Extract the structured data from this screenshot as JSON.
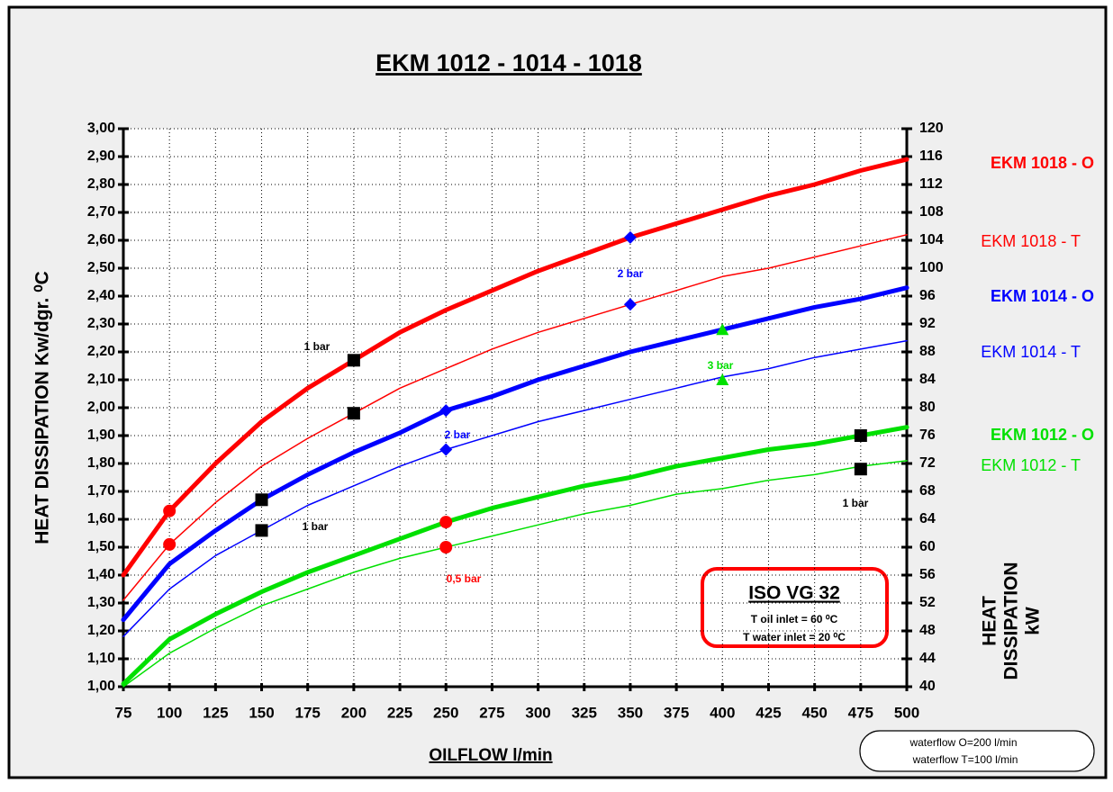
{
  "chart_data": {
    "type": "line",
    "title": "EKM 1012 - 1014 - 1018",
    "xlabel": "OILFLOW l/min",
    "ylabel": "HEAT DISSIPATION  Kw/dgr. ⁰C",
    "y2label": [
      "HEAT",
      "DISSIPATION",
      "kW"
    ],
    "x": [
      75,
      100,
      125,
      150,
      175,
      200,
      225,
      250,
      275,
      300,
      325,
      350,
      375,
      400,
      425,
      450,
      475,
      500
    ],
    "xlim": [
      75,
      500
    ],
    "xticks": [
      75,
      100,
      125,
      150,
      175,
      200,
      225,
      250,
      275,
      300,
      325,
      350,
      375,
      400,
      425,
      450,
      475,
      500
    ],
    "ylim": [
      1.0,
      3.0
    ],
    "yticks": [
      {
        "value": 1.0,
        "label": "1,00"
      },
      {
        "value": 1.1,
        "label": "1,10"
      },
      {
        "value": 1.2,
        "label": "1,20"
      },
      {
        "value": 1.3,
        "label": "1,30"
      },
      {
        "value": 1.4,
        "label": "1,40"
      },
      {
        "value": 1.5,
        "label": "1,50"
      },
      {
        "value": 1.6,
        "label": "1,60"
      },
      {
        "value": 1.7,
        "label": "1,70"
      },
      {
        "value": 1.8,
        "label": "1,80"
      },
      {
        "value": 1.9,
        "label": "1,90"
      },
      {
        "value": 2.0,
        "label": "2,00"
      },
      {
        "value": 2.1,
        "label": "2,10"
      },
      {
        "value": 2.2,
        "label": "2,20"
      },
      {
        "value": 2.3,
        "label": "2,30"
      },
      {
        "value": 2.4,
        "label": "2,40"
      },
      {
        "value": 2.5,
        "label": "2,50"
      },
      {
        "value": 2.6,
        "label": "2,60"
      },
      {
        "value": 2.7,
        "label": "2,70"
      },
      {
        "value": 2.8,
        "label": "2,80"
      },
      {
        "value": 2.9,
        "label": "2,90"
      },
      {
        "value": 3.0,
        "label": "3,00"
      }
    ],
    "y2lim": [
      40,
      120
    ],
    "y2ticks": [
      40,
      44,
      48,
      52,
      56,
      60,
      64,
      68,
      72,
      76,
      80,
      84,
      88,
      92,
      96,
      100,
      104,
      108,
      112,
      116,
      120
    ],
    "grid": true,
    "series": [
      {
        "name": "EKM 1018 - O",
        "color": "#ff0000",
        "line_width": 5,
        "values": [
          1.4,
          1.63,
          1.8,
          1.95,
          2.07,
          2.17,
          2.27,
          2.35,
          2.42,
          2.49,
          2.55,
          2.61,
          2.66,
          2.71,
          2.76,
          2.8,
          2.85,
          2.89
        ]
      },
      {
        "name": "EKM 1018 - T",
        "color": "#ff0000",
        "line_width": 1.5,
        "values": [
          1.31,
          1.51,
          1.66,
          1.79,
          1.89,
          1.98,
          2.07,
          2.14,
          2.21,
          2.27,
          2.32,
          2.37,
          2.42,
          2.47,
          2.5,
          2.54,
          2.58,
          2.62
        ]
      },
      {
        "name": "EKM 1014 - O",
        "color": "#0000ff",
        "line_width": 5,
        "values": [
          1.24,
          1.44,
          1.56,
          1.67,
          1.76,
          1.84,
          1.91,
          1.99,
          2.04,
          2.1,
          2.15,
          2.2,
          2.24,
          2.28,
          2.32,
          2.36,
          2.39,
          2.43
        ]
      },
      {
        "name": "EKM 1014 - T",
        "color": "#0000ff",
        "line_width": 1.5,
        "values": [
          1.18,
          1.35,
          1.47,
          1.56,
          1.65,
          1.72,
          1.79,
          1.85,
          1.9,
          1.95,
          1.99,
          2.03,
          2.07,
          2.11,
          2.14,
          2.18,
          2.21,
          2.24
        ]
      },
      {
        "name": "EKM 1012 - O",
        "color": "#00e000",
        "line_width": 5,
        "values": [
          1.01,
          1.17,
          1.26,
          1.34,
          1.41,
          1.47,
          1.53,
          1.59,
          1.64,
          1.68,
          1.72,
          1.75,
          1.79,
          1.82,
          1.85,
          1.87,
          1.9,
          1.93
        ]
      },
      {
        "name": "EKM 1012 - T",
        "color": "#00e000",
        "line_width": 1.5,
        "values": [
          1.0,
          1.12,
          1.21,
          1.29,
          1.35,
          1.41,
          1.46,
          1.5,
          1.54,
          1.58,
          1.62,
          1.65,
          1.69,
          1.71,
          1.74,
          1.76,
          1.79,
          1.81
        ]
      }
    ],
    "markers": [
      {
        "x": 200,
        "y": 2.17,
        "shape": "square",
        "color": "#000000"
      },
      {
        "x": 200,
        "y": 1.98,
        "shape": "square",
        "color": "#000000"
      },
      {
        "x": 150,
        "y": 1.67,
        "shape": "square",
        "color": "#000000"
      },
      {
        "x": 150,
        "y": 1.56,
        "shape": "square",
        "color": "#000000"
      },
      {
        "x": 475,
        "y": 1.9,
        "shape": "square",
        "color": "#000000"
      },
      {
        "x": 475,
        "y": 1.78,
        "shape": "square",
        "color": "#000000"
      },
      {
        "x": 100,
        "y": 1.63,
        "shape": "circle",
        "color": "#ff0000"
      },
      {
        "x": 100,
        "y": 1.51,
        "shape": "circle",
        "color": "#ff0000"
      },
      {
        "x": 250,
        "y": 1.59,
        "shape": "circle",
        "color": "#ff0000"
      },
      {
        "x": 250,
        "y": 1.5,
        "shape": "circle",
        "color": "#ff0000"
      },
      {
        "x": 350,
        "y": 2.61,
        "shape": "diamond",
        "color": "#0000ff"
      },
      {
        "x": 350,
        "y": 2.37,
        "shape": "diamond",
        "color": "#0000ff"
      },
      {
        "x": 250,
        "y": 1.99,
        "shape": "diamond",
        "color": "#0000ff"
      },
      {
        "x": 250,
        "y": 1.85,
        "shape": "diamond",
        "color": "#0000ff"
      },
      {
        "x": 400,
        "y": 2.28,
        "shape": "triangle",
        "color": "#00e000"
      },
      {
        "x": 400,
        "y": 2.1,
        "shape": "triangle",
        "color": "#00e000"
      }
    ],
    "annotations": [
      {
        "text": "1 bar",
        "color": "#000000"
      },
      {
        "text": "1 bar",
        "color": "#000000"
      },
      {
        "text": "2 bar",
        "color": "#0000ff"
      },
      {
        "text": "2 bar",
        "color": "#0000ff"
      },
      {
        "text": "3 bar",
        "color": "#00e000"
      },
      {
        "text": "0,5 bar",
        "color": "#ff0000"
      },
      {
        "text": "1 bar",
        "color": "#000000"
      }
    ],
    "info_box": {
      "title": "ISO VG 32",
      "lines": [
        "T oil inlet = 60 ⁰C",
        "T water inlet = 20 ⁰C"
      ]
    },
    "flow_box": [
      "waterflow O=200 l/min",
      "waterflow T=100 l/min"
    ]
  }
}
